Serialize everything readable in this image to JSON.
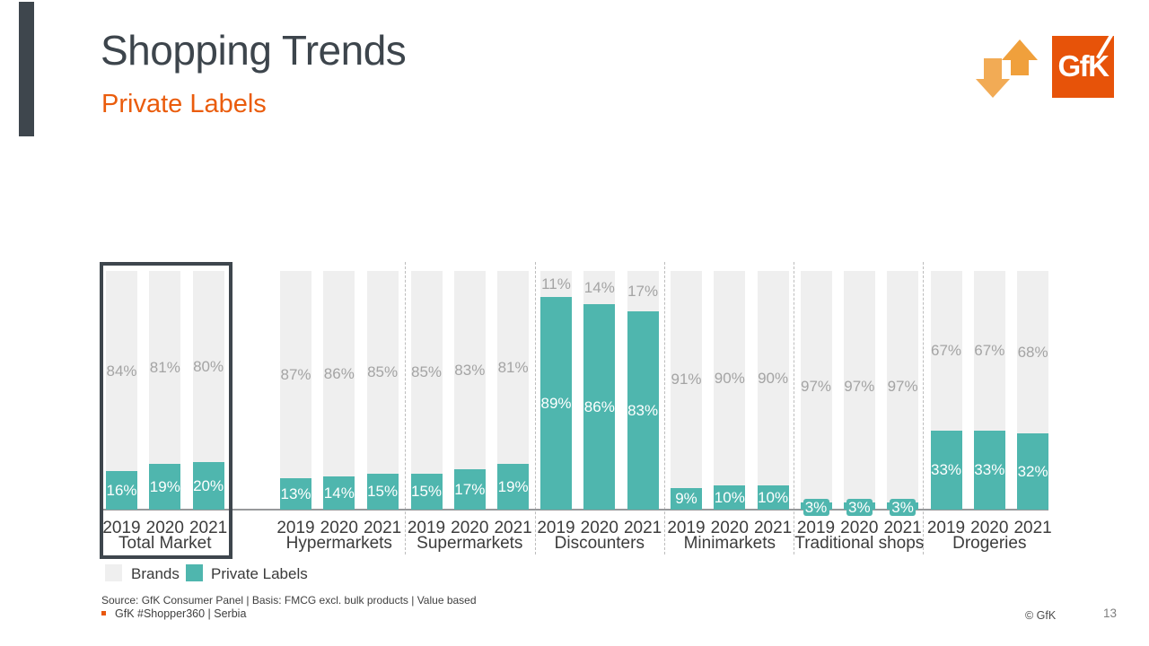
{
  "header": {
    "title": "Shopping Trends",
    "subtitle": "Private Labels",
    "logo_text": "GfK",
    "icons": {
      "trend": "up-down-trend-arrows",
      "logo": "gfk-logo"
    }
  },
  "legend": {
    "brands_label": "Brands",
    "private_labels_label": "Private Labels"
  },
  "chart_data": {
    "type": "bar",
    "subtype": "stacked-100-percent",
    "unit": "%",
    "ylim": [
      0,
      100
    ],
    "grid": false,
    "legend_position": "bottom-left",
    "years": [
      "2019",
      "2020",
      "2021"
    ],
    "series_names": [
      "Brands",
      "Private Labels"
    ],
    "groups": [
      {
        "label": "Total Market",
        "highlighted": true,
        "brands": [
          84,
          81,
          80
        ],
        "private_labels": [
          16,
          19,
          20
        ]
      },
      {
        "label": "Hypermarkets",
        "highlighted": false,
        "brands": [
          87,
          86,
          85
        ],
        "private_labels": [
          13,
          14,
          15
        ]
      },
      {
        "label": "Supermarkets",
        "highlighted": false,
        "brands": [
          85,
          83,
          81
        ],
        "private_labels": [
          15,
          17,
          19
        ]
      },
      {
        "label": "Discounters",
        "highlighted": false,
        "brands": [
          11,
          14,
          17
        ],
        "private_labels": [
          89,
          86,
          83
        ]
      },
      {
        "label": "Minimarkets",
        "highlighted": false,
        "brands": [
          91,
          90,
          90
        ],
        "private_labels": [
          9,
          10,
          10
        ]
      },
      {
        "label": "Traditional shops",
        "highlighted": false,
        "brands": [
          97,
          97,
          97
        ],
        "private_labels": [
          3,
          3,
          3
        ]
      },
      {
        "label": "Drogeries",
        "highlighted": false,
        "brands": [
          67,
          67,
          68
        ],
        "private_labels": [
          33,
          33,
          32
        ]
      }
    ],
    "colors": {
      "brands": "#efefef",
      "private_labels": "#4fb6ae"
    }
  },
  "footer": {
    "source": "Source: GfK Consumer Panel | Basis: FMCG excl. bulk products | Value based",
    "note": "GfK #Shopper360 | Serbia",
    "copyright": "© GfK",
    "page_number": "13"
  },
  "colors": {
    "accent_orange": "#e8570d",
    "dark_slate": "#3e464d",
    "teal": "#4fb6ae",
    "bar_gray": "#efefef",
    "value_label_gray": "#a4a4a4",
    "arrow_amber_up": "#f0a03c",
    "arrow_amber_down": "#f2ab55"
  }
}
